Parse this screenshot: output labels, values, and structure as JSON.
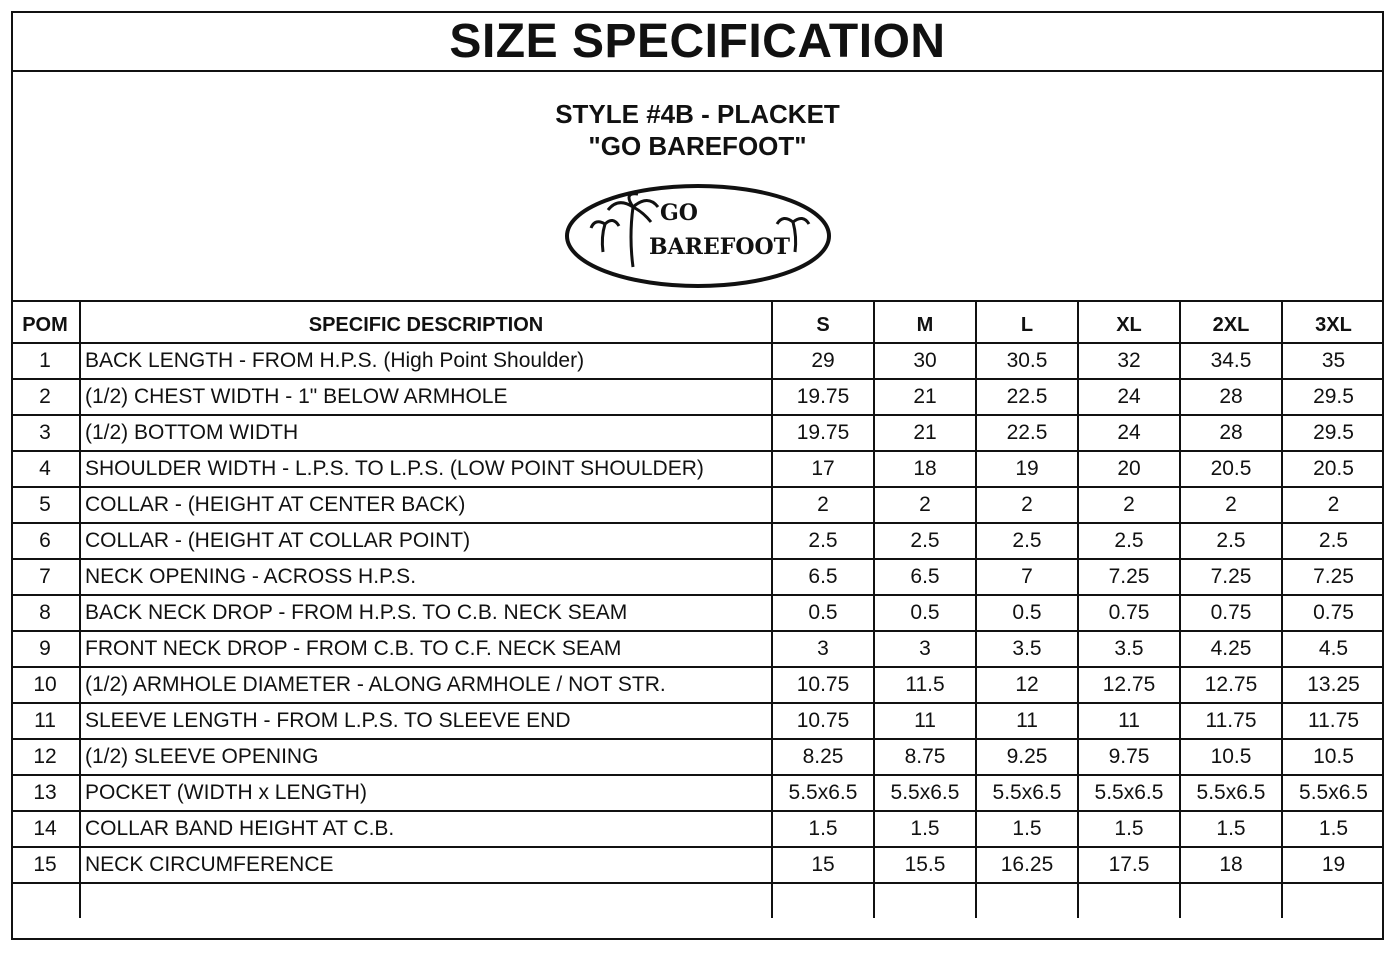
{
  "title": "SIZE SPECIFICATION",
  "style": {
    "line1": "STYLE #4B - PLACKET",
    "line2": "\"GO BAREFOOT\""
  },
  "logo": {
    "text_top": "GO",
    "text_bottom": "BAREFOOT"
  },
  "table": {
    "headers": [
      "POM",
      "SPECIFIC DESCRIPTION",
      "S",
      "M",
      "L",
      "XL",
      "2XL",
      "3XL"
    ],
    "rows": [
      {
        "pom": "1",
        "desc": "BACK LENGTH - FROM H.P.S. (High Point Shoulder)",
        "values": [
          "29",
          "30",
          "30.5",
          "32",
          "34.5",
          "35"
        ]
      },
      {
        "pom": "2",
        "desc": "(1/2) CHEST WIDTH - 1\" BELOW ARMHOLE",
        "values": [
          "19.75",
          "21",
          "22.5",
          "24",
          "28",
          "29.5"
        ]
      },
      {
        "pom": "3",
        "desc": "(1/2) BOTTOM WIDTH",
        "values": [
          "19.75",
          "21",
          "22.5",
          "24",
          "28",
          "29.5"
        ]
      },
      {
        "pom": "4",
        "desc": "SHOULDER WIDTH - L.P.S. TO L.P.S. (LOW POINT SHOULDER)",
        "values": [
          "17",
          "18",
          "19",
          "20",
          "20.5",
          "20.5"
        ]
      },
      {
        "pom": "5",
        "desc": "COLLAR - (HEIGHT AT CENTER BACK)",
        "values": [
          "2",
          "2",
          "2",
          "2",
          "2",
          "2"
        ]
      },
      {
        "pom": "6",
        "desc": "COLLAR - (HEIGHT AT COLLAR POINT)",
        "values": [
          "2.5",
          "2.5",
          "2.5",
          "2.5",
          "2.5",
          "2.5"
        ]
      },
      {
        "pom": "7",
        "desc": "NECK OPENING - ACROSS H.P.S.",
        "values": [
          "6.5",
          "6.5",
          "7",
          "7.25",
          "7.25",
          "7.25"
        ]
      },
      {
        "pom": "8",
        "desc": "BACK NECK DROP - FROM H.P.S. TO C.B. NECK SEAM",
        "values": [
          "0.5",
          "0.5",
          "0.5",
          "0.75",
          "0.75",
          "0.75"
        ]
      },
      {
        "pom": "9",
        "desc": "FRONT NECK DROP - FROM C.B. TO C.F. NECK SEAM",
        "values": [
          "3",
          "3",
          "3.5",
          "3.5",
          "4.25",
          "4.5"
        ]
      },
      {
        "pom": "10",
        "desc": "(1/2) ARMHOLE DIAMETER - ALONG ARMHOLE / NOT STR.",
        "values": [
          "10.75",
          "11.5",
          "12",
          "12.75",
          "12.75",
          "13.25"
        ]
      },
      {
        "pom": "11",
        "desc": "SLEEVE LENGTH - FROM L.P.S. TO SLEEVE END",
        "values": [
          "10.75",
          "11",
          "11",
          "11",
          "11.75",
          "11.75"
        ]
      },
      {
        "pom": "12",
        "desc": "(1/2) SLEEVE OPENING",
        "values": [
          "8.25",
          "8.75",
          "9.25",
          "9.75",
          "10.5",
          "10.5"
        ]
      },
      {
        "pom": "13",
        "desc": "POCKET (WIDTH x LENGTH)",
        "values": [
          "5.5x6.5",
          "5.5x6.5",
          "5.5x6.5",
          "5.5x6.5",
          "5.5x6.5",
          "5.5x6.5"
        ]
      },
      {
        "pom": "14",
        "desc": "COLLAR BAND HEIGHT AT C.B.",
        "values": [
          "1.5",
          "1.5",
          "1.5",
          "1.5",
          "1.5",
          "1.5"
        ]
      },
      {
        "pom": "15",
        "desc": "NECK CIRCUMFERENCE",
        "values": [
          "15",
          "15.5",
          "16.25",
          "17.5",
          "18",
          "19"
        ]
      },
      {
        "pom": "",
        "desc": "",
        "values": [
          "",
          "",
          "",
          "",
          "",
          ""
        ]
      }
    ]
  }
}
